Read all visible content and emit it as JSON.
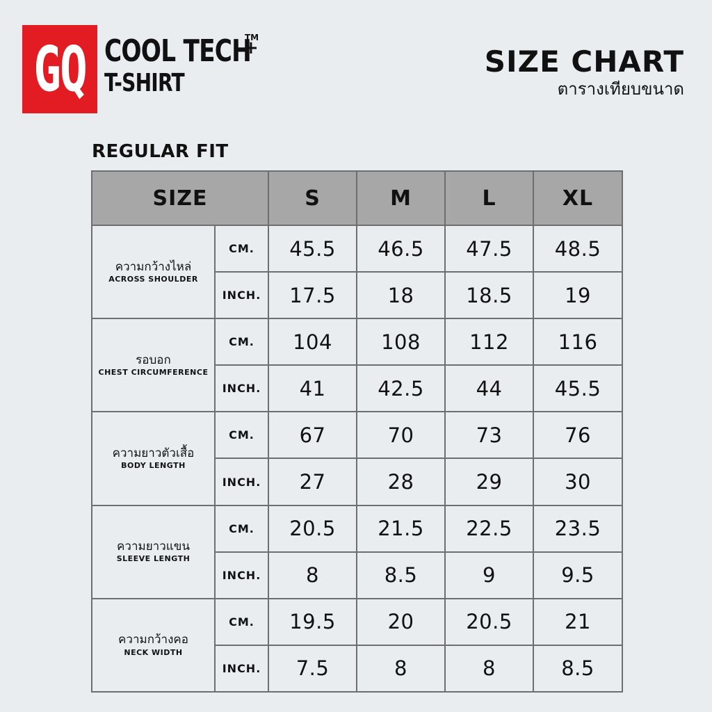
{
  "header": {
    "logo_text": "GQ",
    "brand_line1": "COOL TECH",
    "brand_tm": "TM",
    "brand_plus": "+",
    "brand_line2": "T-SHIRT",
    "title_en": "SIZE CHART",
    "title_th": "ตารางเทียบขนาด",
    "logo_color": "#e31b23"
  },
  "fit": "REGULAR FIT",
  "table": {
    "size_header": "SIZE",
    "sizes": [
      "S",
      "M",
      "L",
      "XL"
    ],
    "unit_cm": "CM.",
    "unit_inch": "INCH.",
    "rows": [
      {
        "th": "ความกว้างไหล่",
        "en": "ACROSS SHOULDER",
        "cm": [
          "45.5",
          "46.5",
          "47.5",
          "48.5"
        ],
        "inch": [
          "17.5",
          "18",
          "18.5",
          "19"
        ]
      },
      {
        "th": "รอบอก",
        "en": "CHEST CIRCUMFERENCE",
        "cm": [
          "104",
          "108",
          "112",
          "116"
        ],
        "inch": [
          "41",
          "42.5",
          "44",
          "45.5"
        ]
      },
      {
        "th": "ความยาวตัวเสื้อ",
        "en": "BODY LENGTH",
        "cm": [
          "67",
          "70",
          "73",
          "76"
        ],
        "inch": [
          "27",
          "28",
          "29",
          "30"
        ]
      },
      {
        "th": "ความยาวแขน",
        "en": "SLEEVE LENGTH",
        "cm": [
          "20.5",
          "21.5",
          "22.5",
          "23.5"
        ],
        "inch": [
          "8",
          "8.5",
          "9",
          "9.5"
        ]
      },
      {
        "th": "ความกว้างคอ",
        "en": "NECK WIDTH",
        "cm": [
          "19.5",
          "20",
          "20.5",
          "21"
        ],
        "inch": [
          "7.5",
          "8",
          "8",
          "8.5"
        ]
      }
    ]
  }
}
